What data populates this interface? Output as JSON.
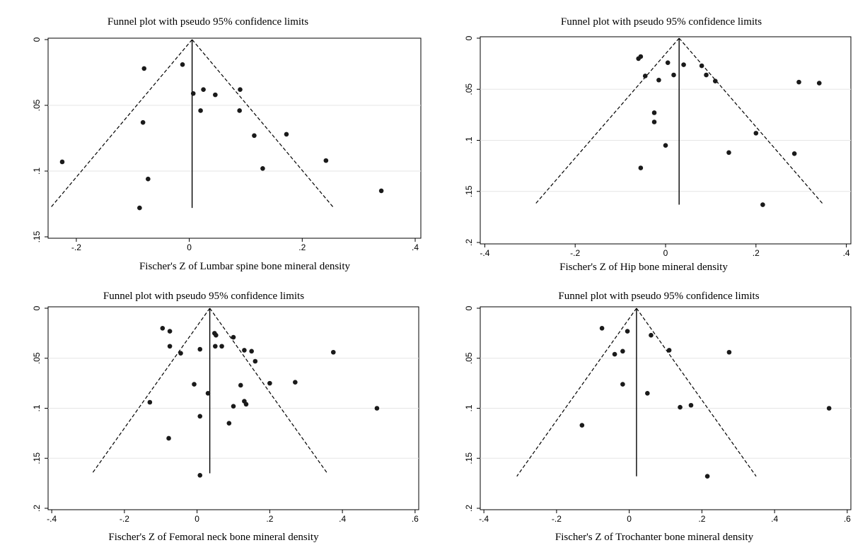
{
  "chart_data": [
    {
      "type": "scatter",
      "title": "Funnel plot with pseudo 95% confidence limits",
      "xlabel": "Fischer's Z of Lumbar spine bone mineral density",
      "ylabel": "",
      "xlim": [
        -0.25,
        0.41
      ],
      "ylim": [
        0,
        0.15
      ],
      "y_reversed": true,
      "grid": true,
      "x_ticks": [
        -0.2,
        0,
        0.2,
        0.4
      ],
      "x_tick_labels": [
        "-.2",
        "0",
        ".2",
        ".4"
      ],
      "y_ticks": [
        0,
        0.05,
        0.1,
        0.15
      ],
      "y_tick_labels": [
        "0",
        ".05",
        ".1",
        ".15"
      ],
      "pooled_estimate": 0.005,
      "funnel_max_se": 0.128,
      "points": [
        {
          "x": -0.225,
          "y": 0.093
        },
        {
          "x": -0.08,
          "y": 0.022
        },
        {
          "x": -0.082,
          "y": 0.063
        },
        {
          "x": -0.073,
          "y": 0.106
        },
        {
          "x": -0.088,
          "y": 0.128
        },
        {
          "x": -0.012,
          "y": 0.019
        },
        {
          "x": 0.007,
          "y": 0.041
        },
        {
          "x": 0.025,
          "y": 0.038
        },
        {
          "x": 0.02,
          "y": 0.054
        },
        {
          "x": 0.046,
          "y": 0.042
        },
        {
          "x": 0.09,
          "y": 0.038
        },
        {
          "x": 0.089,
          "y": 0.054
        },
        {
          "x": 0.115,
          "y": 0.073
        },
        {
          "x": 0.172,
          "y": 0.072
        },
        {
          "x": 0.13,
          "y": 0.098
        },
        {
          "x": 0.242,
          "y": 0.092
        },
        {
          "x": 0.34,
          "y": 0.115
        }
      ]
    },
    {
      "type": "scatter",
      "title": "Funnel plot with pseudo 95% confidence limits",
      "xlabel": "Fischer's Z of Hip bone mineral density",
      "ylabel": "",
      "xlim": [
        -0.41,
        0.41
      ],
      "ylim": [
        0,
        0.2
      ],
      "y_reversed": true,
      "grid": true,
      "x_ticks": [
        -0.4,
        -0.2,
        0,
        0.2,
        0.4
      ],
      "x_tick_labels": [
        "-.4",
        "-.2",
        "0",
        ".2",
        ".4"
      ],
      "y_ticks": [
        0,
        0.05,
        0.1,
        0.15,
        0.2
      ],
      "y_tick_labels": [
        "0",
        ".05",
        ".1",
        ".15",
        ".2"
      ],
      "pooled_estimate": 0.03,
      "funnel_max_se": 0.163,
      "points": [
        {
          "x": -0.06,
          "y": 0.02
        },
        {
          "x": -0.055,
          "y": 0.018
        },
        {
          "x": -0.045,
          "y": 0.037
        },
        {
          "x": -0.015,
          "y": 0.041
        },
        {
          "x": 0.005,
          "y": 0.024
        },
        {
          "x": 0.018,
          "y": 0.036
        },
        {
          "x": 0.04,
          "y": 0.026
        },
        {
          "x": 0.08,
          "y": 0.027
        },
        {
          "x": 0.09,
          "y": 0.036
        },
        {
          "x": 0.11,
          "y": 0.042
        },
        {
          "x": 0.295,
          "y": 0.043
        },
        {
          "x": 0.34,
          "y": 0.044
        },
        {
          "x": -0.025,
          "y": 0.073
        },
        {
          "x": -0.025,
          "y": 0.082
        },
        {
          "x": 0.2,
          "y": 0.093
        },
        {
          "x": 0.0,
          "y": 0.105
        },
        {
          "x": 0.14,
          "y": 0.112
        },
        {
          "x": 0.285,
          "y": 0.113
        },
        {
          "x": -0.055,
          "y": 0.127
        },
        {
          "x": 0.215,
          "y": 0.163
        }
      ]
    },
    {
      "type": "scatter",
      "title": "Funnel plot with pseudo 95% confidence limits",
      "xlabel": "Fischer's Z of Femoral neck bone mineral density",
      "ylabel": "",
      "xlim": [
        -0.41,
        0.61
      ],
      "ylim": [
        0,
        0.2
      ],
      "y_reversed": true,
      "grid": true,
      "x_ticks": [
        -0.4,
        -0.2,
        0,
        0.2,
        0.4,
        0.6
      ],
      "x_tick_labels": [
        "-.4",
        "-.2",
        "0",
        ".2",
        ".4",
        ".6"
      ],
      "y_ticks": [
        0,
        0.05,
        0.1,
        0.15,
        0.2
      ],
      "y_tick_labels": [
        "0",
        ".05",
        ".1",
        ".15",
        ".2"
      ],
      "pooled_estimate": 0.035,
      "funnel_max_se": 0.165,
      "points": [
        {
          "x": -0.095,
          "y": 0.02
        },
        {
          "x": -0.075,
          "y": 0.023
        },
        {
          "x": -0.075,
          "y": 0.038
        },
        {
          "x": -0.045,
          "y": 0.045
        },
        {
          "x": 0.008,
          "y": 0.041
        },
        {
          "x": 0.048,
          "y": 0.025
        },
        {
          "x": 0.052,
          "y": 0.027
        },
        {
          "x": 0.05,
          "y": 0.038
        },
        {
          "x": 0.068,
          "y": 0.038
        },
        {
          "x": 0.1,
          "y": 0.029
        },
        {
          "x": 0.13,
          "y": 0.042
        },
        {
          "x": 0.15,
          "y": 0.043
        },
        {
          "x": 0.16,
          "y": 0.053
        },
        {
          "x": 0.375,
          "y": 0.044
        },
        {
          "x": -0.008,
          "y": 0.076
        },
        {
          "x": 0.03,
          "y": 0.085
        },
        {
          "x": 0.12,
          "y": 0.077
        },
        {
          "x": 0.2,
          "y": 0.075
        },
        {
          "x": 0.27,
          "y": 0.074
        },
        {
          "x": -0.13,
          "y": 0.094
        },
        {
          "x": 0.13,
          "y": 0.093
        },
        {
          "x": 0.135,
          "y": 0.096
        },
        {
          "x": 0.1,
          "y": 0.098
        },
        {
          "x": 0.495,
          "y": 0.1
        },
        {
          "x": 0.008,
          "y": 0.108
        },
        {
          "x": 0.088,
          "y": 0.115
        },
        {
          "x": -0.078,
          "y": 0.13
        },
        {
          "x": 0.008,
          "y": 0.167
        }
      ]
    },
    {
      "type": "scatter",
      "title": "Funnel plot with pseudo 95% confidence limits",
      "xlabel": "Fischer's Z of Trochanter bone mineral density",
      "ylabel": "",
      "xlim": [
        -0.41,
        0.61
      ],
      "ylim": [
        0,
        0.2
      ],
      "y_reversed": true,
      "grid": true,
      "x_ticks": [
        -0.4,
        -0.2,
        0,
        0.2,
        0.4,
        0.6
      ],
      "x_tick_labels": [
        "-.4",
        "-.2",
        "0",
        ".2",
        ".4",
        ".6"
      ],
      "y_ticks": [
        0,
        0.05,
        0.1,
        0.15,
        0.2
      ],
      "y_tick_labels": [
        "0",
        ".05",
        ".1",
        ".15",
        ".2"
      ],
      "pooled_estimate": 0.02,
      "funnel_max_se": 0.168,
      "points": [
        {
          "x": -0.075,
          "y": 0.02
        },
        {
          "x": -0.005,
          "y": 0.023
        },
        {
          "x": 0.06,
          "y": 0.027
        },
        {
          "x": 0.11,
          "y": 0.042
        },
        {
          "x": 0.275,
          "y": 0.044
        },
        {
          "x": -0.018,
          "y": 0.043
        },
        {
          "x": -0.04,
          "y": 0.046
        },
        {
          "x": -0.018,
          "y": 0.076
        },
        {
          "x": 0.05,
          "y": 0.085
        },
        {
          "x": 0.17,
          "y": 0.097
        },
        {
          "x": 0.14,
          "y": 0.099
        },
        {
          "x": 0.55,
          "y": 0.1
        },
        {
          "x": -0.13,
          "y": 0.117
        },
        {
          "x": 0.215,
          "y": 0.168
        }
      ]
    }
  ]
}
